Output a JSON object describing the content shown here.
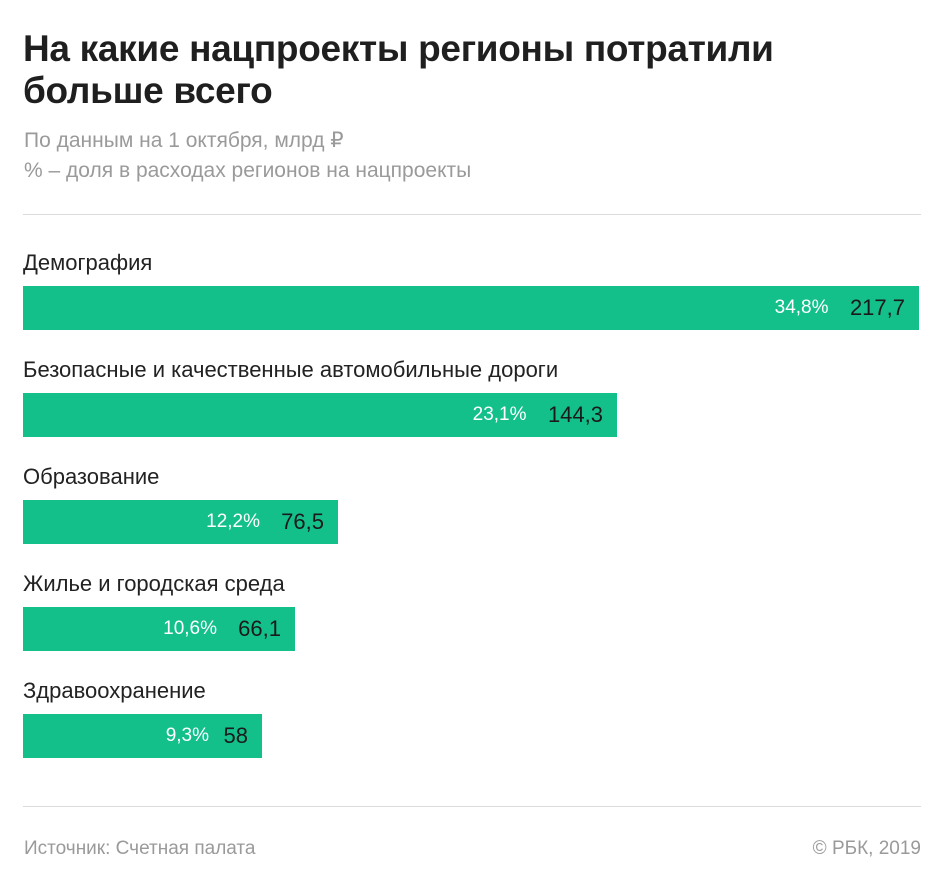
{
  "chart_data": {
    "type": "bar",
    "orientation": "horizontal",
    "title": "На какие нацпроекты регионы потратили больше всего",
    "subtitle_lines": [
      "По данным на 1 октября, млрд ₽",
      "% – доля в расходах регионов на нацпроекты"
    ],
    "categories": [
      "Демография",
      "Безопасные и качественные автомобильные дороги",
      "Образование",
      "Жилье и городская среда",
      "Здравоохранение"
    ],
    "values": [
      217.7,
      144.3,
      76.5,
      66.1,
      58
    ],
    "value_labels": [
      "217,7",
      "144,3",
      "76,5",
      "66,1",
      "58"
    ],
    "share_labels": [
      "34,8%",
      "23,1%",
      "12,2%",
      "10,6%",
      "9,3%"
    ],
    "bar_color": "#14c08a",
    "grid": false,
    "legend": "none"
  },
  "footer": {
    "source": "Источник: Счетная палата",
    "copyright": "© РБК, 2019"
  }
}
